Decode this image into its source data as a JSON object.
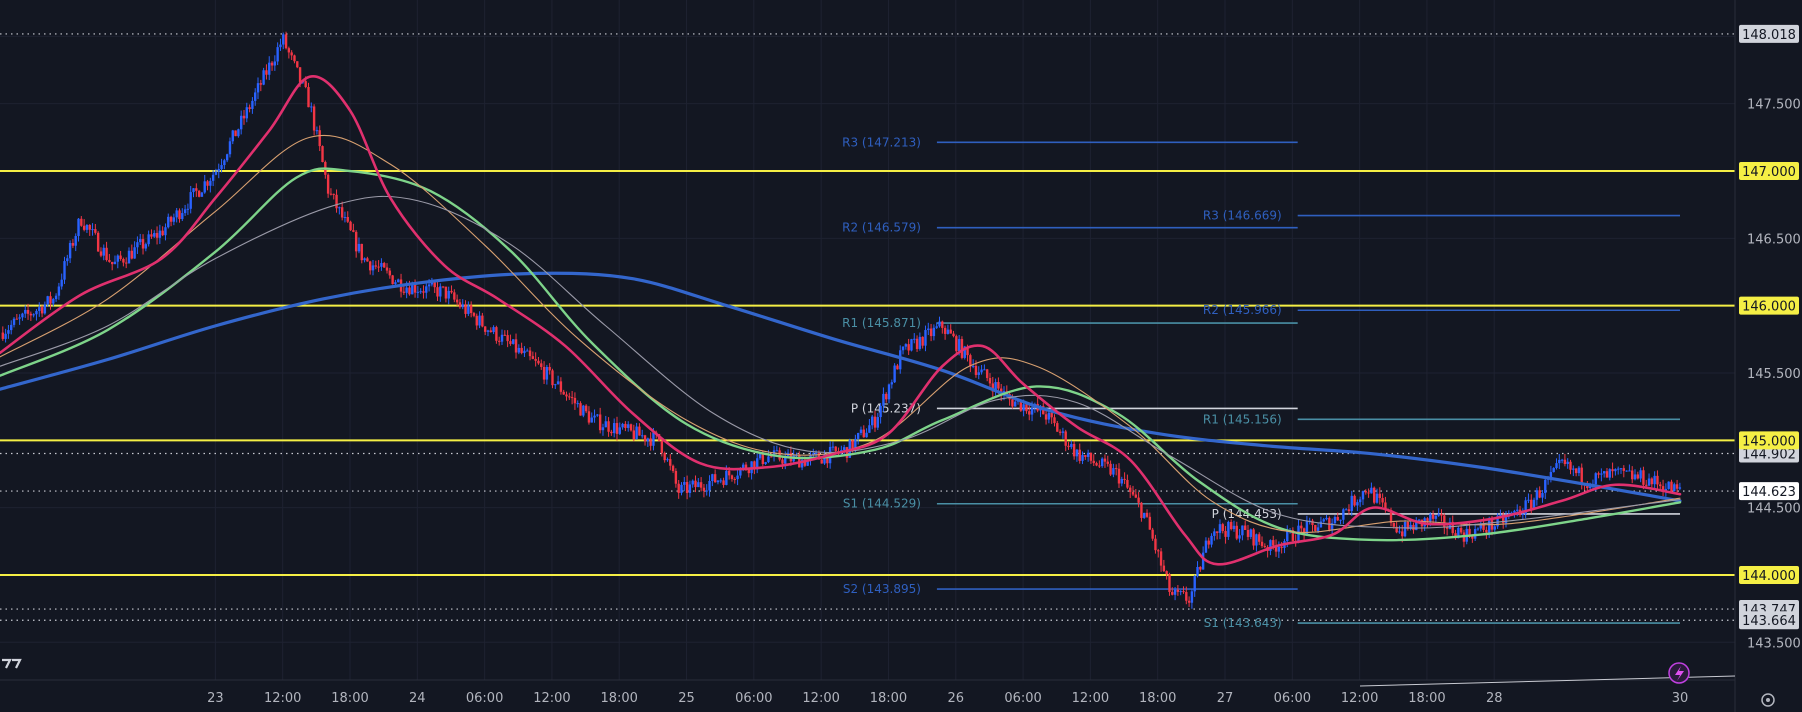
{
  "chart_data": {
    "type": "candlestick",
    "title": "",
    "ylim": [
      143.22,
      148.27
    ],
    "grid": true,
    "colors": {
      "background": "#131722",
      "grid": "#1e2231",
      "up_candle": "#2962ff",
      "down_candle": "#f23645",
      "ma_fast": "#e0306e",
      "ma_medium": "#7ed48a",
      "ma_slow": "#3366cc",
      "ma_thin_orange": "#d8a070",
      "ma_thin_gray": "#9a9aa8",
      "key_level": "#f5ef45",
      "pivot_blue": "#2f5fbf",
      "pivot_teal": "#4a8fa5",
      "pivot_white": "#d1d4dc"
    },
    "x_ticks": [
      "23",
      "12:00",
      "18:00",
      "24",
      "06:00",
      "12:00",
      "18:00",
      "25",
      "06:00",
      "12:00",
      "18:00",
      "26",
      "06:00",
      "12:00",
      "18:00",
      "27",
      "06:00",
      "12:00",
      "18:00",
      "28",
      "30"
    ],
    "y_ticks": [
      "147.500",
      "146.500",
      "145.500",
      "143.500"
    ],
    "key_levels": [
      {
        "label": "147.000",
        "value": 147.0
      },
      {
        "label": "146.000",
        "value": 146.0
      },
      {
        "label": "145.000",
        "value": 145.0
      },
      {
        "label": "144.000",
        "value": 144.0
      }
    ],
    "price_tags": [
      {
        "label": "148.018",
        "value": 148.018,
        "style": "dotted"
      },
      {
        "label": "144.902",
        "value": 144.902,
        "style": "dotted"
      },
      {
        "label": "144.623",
        "value": 144.623,
        "style": "current"
      },
      {
        "label": "144.500",
        "value": 144.5,
        "style": "plain"
      },
      {
        "label": "143.747",
        "value": 143.747,
        "style": "dotted"
      },
      {
        "label": "143.664",
        "value": 143.664,
        "style": "dotted"
      }
    ],
    "pivot_sets": [
      {
        "period": "26",
        "x_start": 25.68,
        "x_end": 27.02,
        "levels": [
          {
            "label": "R3 (147.213)",
            "value": 147.213,
            "color": "blue"
          },
          {
            "label": "R2 (146.579)",
            "value": 146.579,
            "color": "blue"
          },
          {
            "label": "R1 (145.871)",
            "value": 145.871,
            "color": "teal"
          },
          {
            "label": "P (145.237)",
            "value": 145.237,
            "color": "white"
          },
          {
            "label": "S1 (144.529)",
            "value": 144.529,
            "color": "teal"
          },
          {
            "label": "S2 (143.895)",
            "value": 143.895,
            "color": "blue"
          }
        ]
      },
      {
        "period": "27",
        "x_start": 27.02,
        "x_end": 28.44,
        "levels": [
          {
            "label": "R3 (146.669)",
            "value": 146.669,
            "color": "blue"
          },
          {
            "label": "R2 (145.966)",
            "value": 145.966,
            "color": "blue"
          },
          {
            "label": "R1 (145.156)",
            "value": 145.156,
            "color": "teal"
          },
          {
            "label": "P (144.453)",
            "value": 144.453,
            "color": "white"
          },
          {
            "label": "S1 (143.643)",
            "value": 143.643,
            "color": "teal"
          }
        ]
      }
    ],
    "price_path": [
      [
        22.2,
        145.8
      ],
      [
        22.4,
        146.05
      ],
      [
        22.5,
        146.65
      ],
      [
        22.62,
        146.3
      ],
      [
        22.8,
        146.55
      ],
      [
        23.0,
        147.0
      ],
      [
        23.12,
        147.45
      ],
      [
        23.25,
        147.98
      ],
      [
        23.35,
        147.5
      ],
      [
        23.42,
        146.85
      ],
      [
        23.55,
        146.35
      ],
      [
        23.7,
        146.15
      ],
      [
        23.85,
        146.1
      ],
      [
        24.0,
        145.85
      ],
      [
        24.2,
        145.55
      ],
      [
        24.4,
        145.15
      ],
      [
        24.55,
        145.05
      ],
      [
        24.65,
        145.0
      ],
      [
        24.72,
        144.62
      ],
      [
        24.88,
        144.72
      ],
      [
        25.05,
        144.88
      ],
      [
        25.2,
        144.85
      ],
      [
        25.35,
        144.93
      ],
      [
        25.45,
        145.15
      ],
      [
        25.55,
        145.65
      ],
      [
        25.7,
        145.85
      ],
      [
        25.82,
        145.55
      ],
      [
        25.95,
        145.3
      ],
      [
        26.08,
        145.2
      ],
      [
        26.2,
        144.9
      ],
      [
        26.35,
        144.75
      ],
      [
        26.45,
        144.45
      ],
      [
        26.55,
        143.85
      ],
      [
        26.62,
        143.82
      ],
      [
        26.7,
        144.35
      ],
      [
        26.82,
        144.32
      ],
      [
        26.92,
        144.2
      ],
      [
        27.02,
        144.32
      ],
      [
        27.15,
        144.4
      ],
      [
        27.28,
        144.65
      ],
      [
        27.4,
        144.32
      ],
      [
        27.52,
        144.42
      ],
      [
        27.64,
        144.3
      ],
      [
        27.76,
        144.38
      ],
      [
        27.88,
        144.52
      ],
      [
        28.0,
        144.82
      ],
      [
        28.1,
        144.7
      ],
      [
        28.2,
        144.75
      ],
      [
        28.3,
        144.72
      ],
      [
        28.44,
        144.62
      ]
    ],
    "moving_averages": [
      {
        "id": "ma_slow",
        "width": 3.2,
        "points": [
          [
            22.2,
            145.38
          ],
          [
            22.6,
            145.6
          ],
          [
            23.0,
            145.85
          ],
          [
            23.4,
            146.05
          ],
          [
            23.8,
            146.18
          ],
          [
            24.2,
            146.24
          ],
          [
            24.55,
            146.2
          ],
          [
            24.9,
            146.0
          ],
          [
            25.3,
            145.75
          ],
          [
            25.7,
            145.52
          ],
          [
            26.1,
            145.22
          ],
          [
            26.5,
            145.05
          ],
          [
            26.9,
            144.96
          ],
          [
            27.3,
            144.9
          ],
          [
            27.7,
            144.8
          ],
          [
            28.1,
            144.67
          ],
          [
            28.44,
            144.55
          ]
        ]
      },
      {
        "id": "ma_medium",
        "width": 2.4,
        "points": [
          [
            22.2,
            145.48
          ],
          [
            22.6,
            145.82
          ],
          [
            23.0,
            146.4
          ],
          [
            23.3,
            146.95
          ],
          [
            23.5,
            147.0
          ],
          [
            23.8,
            146.85
          ],
          [
            24.1,
            146.4
          ],
          [
            24.4,
            145.72
          ],
          [
            24.75,
            145.12
          ],
          [
            25.1,
            144.88
          ],
          [
            25.45,
            144.93
          ],
          [
            25.7,
            145.15
          ],
          [
            26.05,
            145.4
          ],
          [
            26.35,
            145.2
          ],
          [
            26.65,
            144.7
          ],
          [
            26.95,
            144.35
          ],
          [
            27.3,
            144.26
          ],
          [
            27.7,
            144.3
          ],
          [
            28.1,
            144.42
          ],
          [
            28.44,
            144.54
          ]
        ]
      },
      {
        "id": "ma_thin_orange",
        "width": 1.1,
        "points": [
          [
            22.2,
            145.62
          ],
          [
            22.6,
            146.05
          ],
          [
            23.0,
            146.7
          ],
          [
            23.35,
            147.25
          ],
          [
            23.65,
            147.05
          ],
          [
            24.0,
            146.45
          ],
          [
            24.35,
            145.75
          ],
          [
            24.75,
            145.15
          ],
          [
            25.1,
            144.9
          ],
          [
            25.45,
            145.0
          ],
          [
            25.8,
            145.55
          ],
          [
            26.05,
            145.55
          ],
          [
            26.4,
            145.1
          ],
          [
            26.7,
            144.55
          ],
          [
            27.0,
            144.32
          ],
          [
            27.4,
            144.4
          ],
          [
            27.8,
            144.38
          ],
          [
            28.44,
            144.57
          ]
        ]
      },
      {
        "id": "ma_thin_gray",
        "width": 1.1,
        "points": [
          [
            22.2,
            145.55
          ],
          [
            22.6,
            145.85
          ],
          [
            23.0,
            146.35
          ],
          [
            23.45,
            146.75
          ],
          [
            23.75,
            146.78
          ],
          [
            24.1,
            146.45
          ],
          [
            24.45,
            145.85
          ],
          [
            24.85,
            145.2
          ],
          [
            25.2,
            144.92
          ],
          [
            25.55,
            145.0
          ],
          [
            25.9,
            145.3
          ],
          [
            26.2,
            145.28
          ],
          [
            26.55,
            144.88
          ],
          [
            26.95,
            144.45
          ],
          [
            27.4,
            144.35
          ],
          [
            27.8,
            144.4
          ],
          [
            28.44,
            144.56
          ]
        ]
      },
      {
        "id": "ma_fast",
        "width": 2.6,
        "points": [
          [
            22.2,
            145.65
          ],
          [
            22.5,
            146.08
          ],
          [
            22.8,
            146.35
          ],
          [
            23.0,
            146.8
          ],
          [
            23.2,
            147.3
          ],
          [
            23.35,
            147.7
          ],
          [
            23.5,
            147.45
          ],
          [
            23.65,
            146.8
          ],
          [
            23.85,
            146.3
          ],
          [
            24.05,
            146.05
          ],
          [
            24.3,
            145.7
          ],
          [
            24.55,
            145.2
          ],
          [
            24.8,
            144.83
          ],
          [
            25.05,
            144.8
          ],
          [
            25.3,
            144.9
          ],
          [
            25.5,
            145.05
          ],
          [
            25.7,
            145.55
          ],
          [
            25.85,
            145.7
          ],
          [
            26.0,
            145.42
          ],
          [
            26.2,
            145.1
          ],
          [
            26.4,
            144.85
          ],
          [
            26.6,
            144.3
          ],
          [
            26.72,
            144.08
          ],
          [
            26.95,
            144.22
          ],
          [
            27.15,
            144.3
          ],
          [
            27.3,
            144.5
          ],
          [
            27.5,
            144.38
          ],
          [
            27.75,
            144.42
          ],
          [
            28.0,
            144.55
          ],
          [
            28.2,
            144.67
          ],
          [
            28.44,
            144.6
          ]
        ]
      }
    ]
  }
}
